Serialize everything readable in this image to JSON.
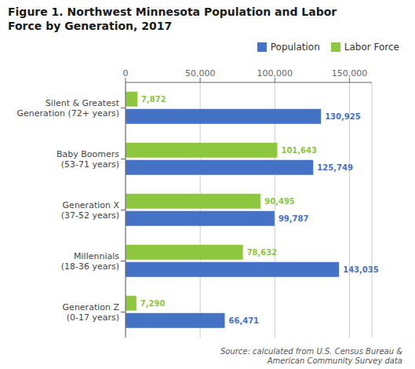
{
  "chart_data": {
    "type": "bar",
    "orientation": "horizontal",
    "title": "Figure 1. Northwest Minnesota Population and Labor\nForce by Generation, 2017",
    "categories": [
      "Silent & Greatest\nGeneration (72+ years)",
      "Baby Boomers\n(53-71 years)",
      "Generation X\n(37-52 years)",
      "Millennials\n(18-36 years)",
      "Generation Z\n(0-17 years)"
    ],
    "series": [
      {
        "name": "Population",
        "color": "#4472C4",
        "values": [
          130925,
          125749,
          99787,
          143035,
          66471
        ],
        "value_labels": [
          "130,925",
          "125,749",
          "99,787",
          "143,035",
          "66,471"
        ]
      },
      {
        "name": "Labor Force",
        "color": "#8DC63F",
        "values": [
          7872,
          101643,
          90495,
          78632,
          7290
        ],
        "value_labels": [
          "7,872",
          "101,643",
          "90,495",
          "78,632",
          "7,290"
        ]
      }
    ],
    "xlim": [
      0,
      165000
    ],
    "xticks": [
      0,
      {
        "value": 50000,
        "label": "50,000"
      },
      {
        "value": 100000,
        "label": "100,000"
      },
      {
        "value": 150000,
        "label": "150,000"
      }
    ],
    "grid": true,
    "legend": "upper right",
    "data_labels": true,
    "annotations": [
      "Source: calculated from U.S. Census Bureau &\nAmerican Community Survey data"
    ]
  }
}
